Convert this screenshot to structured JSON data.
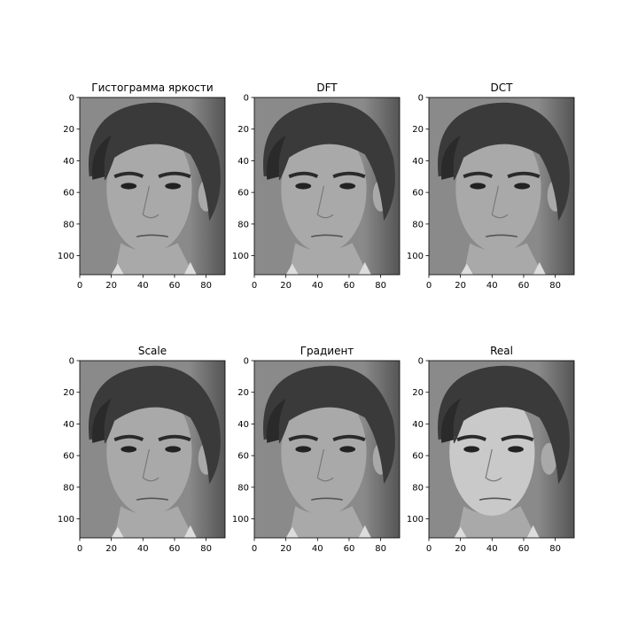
{
  "figure": {
    "background": "#ffffff",
    "axis_color": "#000000",
    "face_shades": {
      "bg": "#8a8a8a",
      "bg_dark": "#555555",
      "hair": "#3a3a3a",
      "hair_dark": "#2a2a2a",
      "skin": "#a9a9a9",
      "skin_light": "#c9c9c9",
      "eye": "#222222",
      "shirt": "#dddddd"
    }
  },
  "chart_data": [
    {
      "type": "image",
      "title": "Гистограмма яркости",
      "xlim": [
        0,
        92
      ],
      "ylim": [
        112,
        0
      ],
      "xticks": [
        0,
        20,
        40,
        60,
        80
      ],
      "yticks": [
        0,
        20,
        40,
        60,
        80,
        100
      ],
      "variant": "processed"
    },
    {
      "type": "image",
      "title": "DFT",
      "xlim": [
        0,
        92
      ],
      "ylim": [
        112,
        0
      ],
      "xticks": [
        0,
        20,
        40,
        60,
        80
      ],
      "yticks": [
        0,
        20,
        40,
        60,
        80,
        100
      ],
      "variant": "processed"
    },
    {
      "type": "image",
      "title": "DCT",
      "xlim": [
        0,
        92
      ],
      "ylim": [
        112,
        0
      ],
      "xticks": [
        0,
        20,
        40,
        60,
        80
      ],
      "yticks": [
        0,
        20,
        40,
        60,
        80,
        100
      ],
      "variant": "processed"
    },
    {
      "type": "image",
      "title": "Scale",
      "xlim": [
        0,
        92
      ],
      "ylim": [
        112,
        0
      ],
      "xticks": [
        0,
        20,
        40,
        60,
        80
      ],
      "yticks": [
        0,
        20,
        40,
        60,
        80,
        100
      ],
      "variant": "processed"
    },
    {
      "type": "image",
      "title": "Градиент",
      "xlim": [
        0,
        92
      ],
      "ylim": [
        112,
        0
      ],
      "xticks": [
        0,
        20,
        40,
        60,
        80
      ],
      "yticks": [
        0,
        20,
        40,
        60,
        80,
        100
      ],
      "variant": "processed"
    },
    {
      "type": "image",
      "title": "Real",
      "xlim": [
        0,
        92
      ],
      "ylim": [
        112,
        0
      ],
      "xticks": [
        0,
        20,
        40,
        60,
        80
      ],
      "yticks": [
        0,
        20,
        40,
        60,
        80,
        100
      ],
      "variant": "real"
    }
  ]
}
